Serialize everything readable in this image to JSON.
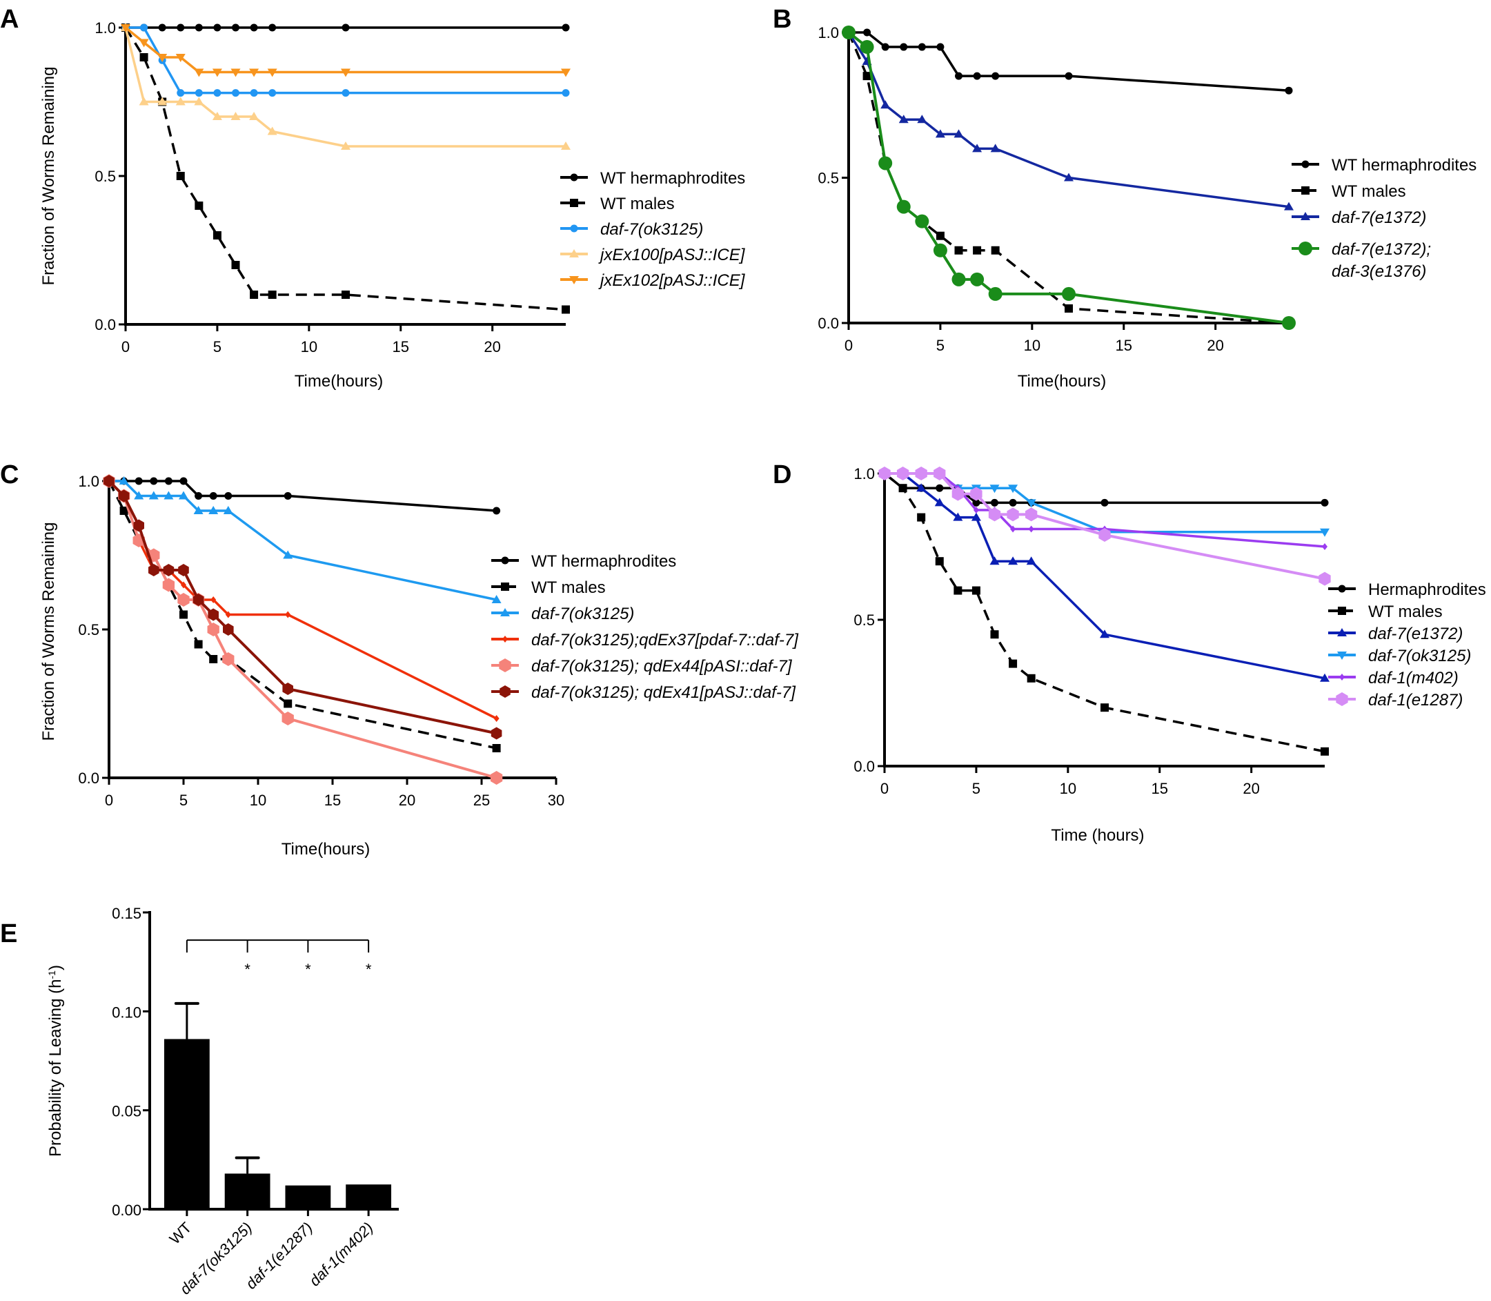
{
  "figure": {
    "panels": [
      "A",
      "B",
      "C",
      "D",
      "E"
    ]
  },
  "chart_data": [
    {
      "panel": "A",
      "type": "line",
      "title": "",
      "xlabel": "Time(hours)",
      "ylabel": "Fraction of Worms Remaining",
      "xlim": [
        0,
        24
      ],
      "ylim": [
        0,
        1.0
      ],
      "xticks": [
        0,
        5,
        10,
        15,
        20
      ],
      "yticks": [
        "0.0",
        "0.5",
        "1.0"
      ],
      "grid": false,
      "legend_position": "right",
      "x": [
        0,
        1,
        2,
        3,
        4,
        5,
        6,
        7,
        8,
        12,
        24
      ],
      "series": [
        {
          "name": "WT hermaphrodites",
          "italic": false,
          "color": "#000000",
          "dashed": false,
          "marker": "circle",
          "values": [
            1.0,
            1.0,
            1.0,
            1.0,
            1.0,
            1.0,
            1.0,
            1.0,
            1.0,
            1.0,
            1.0
          ]
        },
        {
          "name": "WT males",
          "italic": false,
          "color": "#000000",
          "dashed": true,
          "marker": "square",
          "values": [
            1.0,
            0.9,
            0.75,
            0.5,
            0.4,
            0.3,
            0.2,
            0.1,
            0.1,
            0.1,
            0.05
          ]
        },
        {
          "name": "daf-7(ok3125)",
          "italic": true,
          "color": "#2196f3",
          "dashed": false,
          "marker": "circle",
          "values": [
            1.0,
            1.0,
            0.89,
            0.78,
            0.78,
            0.78,
            0.78,
            0.78,
            0.78,
            0.78,
            0.78
          ]
        },
        {
          "name": "jxEx100[pASJ::ICE]",
          "italic": true,
          "color": "#fdd08a",
          "dashed": false,
          "marker": "triangle-up",
          "values": [
            1.0,
            0.75,
            0.75,
            0.75,
            0.75,
            0.7,
            0.7,
            0.7,
            0.65,
            0.6,
            0.6
          ]
        },
        {
          "name": "jxEx102[pASJ::ICE]",
          "italic": true,
          "color": "#f7941d",
          "dashed": false,
          "marker": "triangle-down",
          "values": [
            1.0,
            0.95,
            0.9,
            0.9,
            0.85,
            0.85,
            0.85,
            0.85,
            0.85,
            0.85,
            0.85
          ]
        }
      ]
    },
    {
      "panel": "B",
      "type": "line",
      "title": "",
      "xlabel": "Time(hours)",
      "ylabel": "",
      "xlim": [
        0,
        24
      ],
      "ylim": [
        0,
        1.0
      ],
      "xticks": [
        0,
        5,
        10,
        15,
        20
      ],
      "yticks": [
        "0.0",
        "0.5",
        "1.0"
      ],
      "grid": false,
      "legend_position": "right",
      "x": [
        0,
        1,
        2,
        3,
        4,
        5,
        6,
        7,
        8,
        12,
        24
      ],
      "series": [
        {
          "name": "WT hermaphrodites",
          "italic": false,
          "color": "#000000",
          "dashed": false,
          "marker": "circle",
          "values": [
            1.0,
            1.0,
            0.95,
            0.95,
            0.95,
            0.95,
            0.85,
            0.85,
            0.85,
            0.85,
            0.8
          ]
        },
        {
          "name": "WT males",
          "italic": false,
          "color": "#000000",
          "dashed": true,
          "marker": "square",
          "values": [
            1.0,
            0.85,
            0.55,
            0.4,
            0.35,
            0.3,
            0.25,
            0.25,
            0.25,
            0.05,
            0.0
          ]
        },
        {
          "name": "daf-7(e1372)",
          "italic": true,
          "color": "#1428a0",
          "dashed": false,
          "marker": "triangle-up",
          "values": [
            1.0,
            0.9,
            0.75,
            0.7,
            0.7,
            0.65,
            0.65,
            0.6,
            0.6,
            0.5,
            0.4
          ]
        },
        {
          "name": "daf-7(e1372);\ndaf-3(e1376)",
          "italic": true,
          "color": "#1a8c1a",
          "dashed": false,
          "marker": "big-circle",
          "values": [
            1.0,
            0.95,
            0.55,
            0.4,
            0.35,
            0.25,
            0.15,
            0.15,
            0.1,
            0.1,
            0.0
          ]
        }
      ]
    },
    {
      "panel": "C",
      "type": "line",
      "title": "",
      "xlabel": "Time(hours)",
      "ylabel": "Fraction of Worms Remaining",
      "xlim": [
        0,
        30
      ],
      "ylim": [
        0,
        1.0
      ],
      "xticks": [
        0,
        5,
        10,
        15,
        20,
        25,
        30
      ],
      "yticks": [
        "0.0",
        "0.5",
        "1.0"
      ],
      "grid": false,
      "legend_position": "right",
      "x": [
        0,
        1,
        2,
        3,
        4,
        5,
        6,
        7,
        8,
        12,
        26
      ],
      "series": [
        {
          "name": "WT hermaphrodites",
          "italic": false,
          "color": "#000000",
          "dashed": false,
          "marker": "circle",
          "values": [
            1.0,
            1.0,
            1.0,
            1.0,
            1.0,
            1.0,
            0.95,
            0.95,
            0.95,
            0.95,
            0.9
          ]
        },
        {
          "name": "WT males",
          "italic": false,
          "color": "#000000",
          "dashed": true,
          "marker": "square",
          "values": [
            1.0,
            0.9,
            0.8,
            0.75,
            0.65,
            0.55,
            0.45,
            0.4,
            0.4,
            0.25,
            0.1
          ]
        },
        {
          "name": "daf-7(ok3125)",
          "italic": true,
          "color": "#1e9af0",
          "dashed": false,
          "marker": "triangle-up",
          "values": [
            1.0,
            1.0,
            0.95,
            0.95,
            0.95,
            0.95,
            0.9,
            0.9,
            0.9,
            0.75,
            0.6
          ]
        },
        {
          "name": "daf-7(ok3125);qdEx37[pdaf-7::daf-7]",
          "italic": true,
          "color": "#f0300a",
          "dashed": false,
          "marker": "small-diamond",
          "values": [
            1.0,
            0.95,
            0.8,
            0.7,
            0.7,
            0.65,
            0.6,
            0.6,
            0.55,
            0.55,
            0.2
          ]
        },
        {
          "name": "daf-7(ok3125); qdEx44[pASI::daf-7]",
          "italic": true,
          "color": "#f5837a",
          "dashed": false,
          "marker": "big-hex",
          "values": [
            1.0,
            0.95,
            0.8,
            0.75,
            0.65,
            0.6,
            0.6,
            0.5,
            0.4,
            0.2,
            0.0
          ]
        },
        {
          "name": "daf-7(ok3125); qdEx41[pASJ::daf-7]",
          "italic": true,
          "color": "#8b1408",
          "dashed": false,
          "marker": "hex",
          "values": [
            1.0,
            0.95,
            0.85,
            0.7,
            0.7,
            0.7,
            0.6,
            0.55,
            0.5,
            0.3,
            0.15
          ]
        }
      ]
    },
    {
      "panel": "D",
      "type": "line",
      "title": "",
      "xlabel": "Time (hours)",
      "ylabel": "",
      "xlim": [
        0,
        24
      ],
      "ylim": [
        0,
        1.0
      ],
      "xticks": [
        0,
        5,
        10,
        15,
        20
      ],
      "yticks": [
        "0.0",
        "0.5",
        "1.0"
      ],
      "grid": false,
      "legend_position": "right",
      "x": [
        0,
        1,
        2,
        3,
        4,
        5,
        6,
        7,
        8,
        12,
        24
      ],
      "series": [
        {
          "name": "Hermaphrodites",
          "italic": false,
          "color": "#000000",
          "dashed": false,
          "marker": "circle",
          "values": [
            1.0,
            0.95,
            0.95,
            0.95,
            0.95,
            0.9,
            0.9,
            0.9,
            0.9,
            0.9,
            0.9
          ]
        },
        {
          "name": "WT males",
          "italic": false,
          "color": "#000000",
          "dashed": true,
          "marker": "square",
          "values": [
            1.0,
            0.95,
            0.85,
            0.7,
            0.6,
            0.6,
            0.45,
            0.35,
            0.3,
            0.2,
            0.05
          ]
        },
        {
          "name": "daf-7(e1372)",
          "italic": true,
          "color": "#0a1fb4",
          "dashed": false,
          "marker": "triangle-up",
          "values": [
            1.0,
            1.0,
            0.95,
            0.9,
            0.85,
            0.85,
            0.7,
            0.7,
            0.7,
            0.45,
            0.3
          ]
        },
        {
          "name": "daf-7(ok3125)",
          "italic": true,
          "color": "#1e9af0",
          "dashed": false,
          "marker": "triangle-down",
          "values": [
            1.0,
            1.0,
            1.0,
            1.0,
            0.95,
            0.95,
            0.95,
            0.95,
            0.9,
            0.8,
            0.8
          ]
        },
        {
          "name": "daf-1(m402)",
          "italic": true,
          "color": "#9b3cf0",
          "dashed": false,
          "marker": "small-diamond",
          "values": [
            1.0,
            1.0,
            1.0,
            1.0,
            0.95,
            0.875,
            0.875,
            0.81,
            0.81,
            0.81,
            0.75
          ]
        },
        {
          "name": "daf-1(e1287)",
          "italic": true,
          "color": "#d58cf5",
          "dashed": false,
          "marker": "big-hex",
          "values": [
            1.0,
            1.0,
            1.0,
            1.0,
            0.93,
            0.93,
            0.86,
            0.86,
            0.86,
            0.79,
            0.64
          ]
        }
      ]
    },
    {
      "panel": "E",
      "type": "bar",
      "title": "",
      "xlabel": "",
      "ylabel": "Probability of Leaving (h",
      "ylabel_sup": "-1",
      "ylabel_end": ")",
      "ylim": [
        0,
        0.15
      ],
      "yticks": [
        "0.00",
        "0.05",
        "0.10",
        "0.15"
      ],
      "grid": false,
      "categories": [
        "WT",
        "daf-7(ok3125)",
        "daf-1(e1287)",
        "daf-1(m402)"
      ],
      "category_italic": [
        false,
        true,
        true,
        true
      ],
      "values": [
        0.086,
        0.018,
        0.012,
        0.0125
      ],
      "error_upper": [
        0.104,
        0.026,
        0.0125,
        0.0125
      ],
      "color": "#000000",
      "significance": {
        "reference": "WT",
        "marks": [
          "",
          "*",
          "*",
          "*"
        ]
      }
    }
  ]
}
